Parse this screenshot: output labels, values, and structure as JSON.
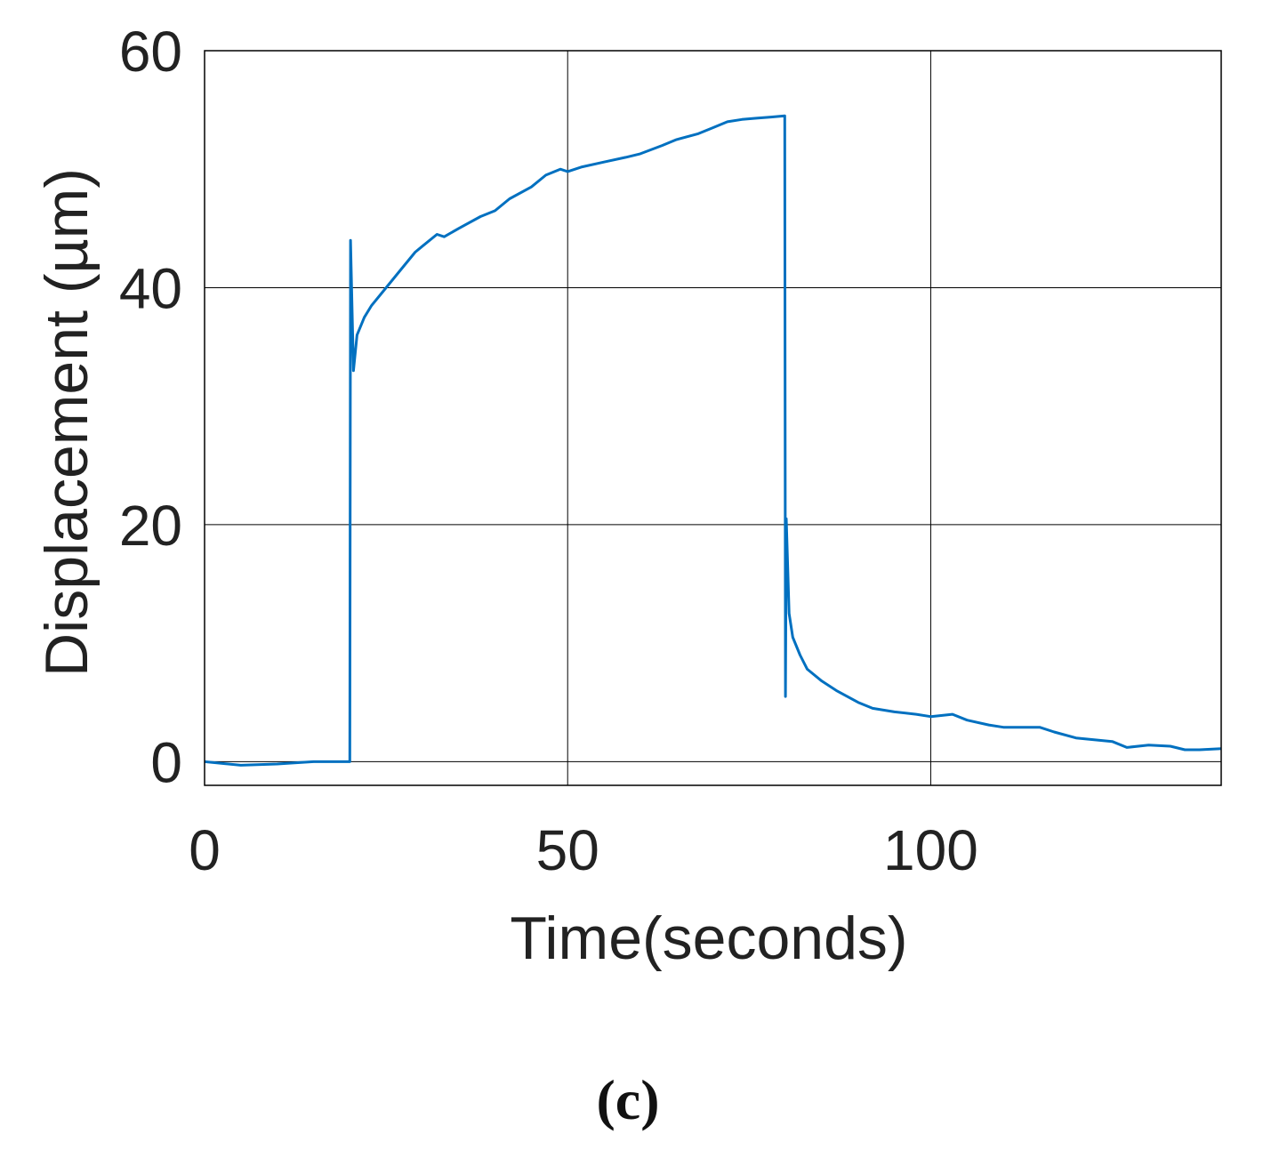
{
  "chart_data": {
    "type": "line",
    "xlabel": "Time(seconds)",
    "ylabel": "Displacement (µm)",
    "xlim": [
      0,
      140
    ],
    "ylim": [
      -2,
      60
    ],
    "xticks": [
      0,
      50,
      100
    ],
    "yticks": [
      0,
      20,
      40,
      60
    ],
    "grid": true,
    "panel_label": "(c)",
    "series": [
      {
        "color": "#0070C0",
        "x": [
          0,
          5,
          10,
          15,
          19.5,
          20,
          20.1,
          20.5,
          21,
          22,
          23,
          25,
          27,
          29,
          30,
          32,
          33,
          35,
          38,
          40,
          42,
          45,
          47,
          49,
          50,
          52,
          55,
          58,
          60,
          63,
          65,
          68,
          70,
          72,
          74,
          76,
          78,
          79.9,
          80,
          80.1,
          80.5,
          81,
          82,
          83,
          85,
          87,
          90,
          92,
          95,
          98,
          100,
          103,
          105,
          108,
          110,
          115,
          117,
          120,
          125,
          127,
          130,
          133,
          135,
          137,
          140
        ],
        "y": [
          0,
          -0.3,
          -0.2,
          0,
          0,
          0,
          44,
          33,
          36,
          37.5,
          38.5,
          40,
          41.5,
          43,
          43.5,
          44.5,
          44.3,
          45,
          46,
          46.5,
          47.5,
          48.5,
          49.5,
          50,
          49.8,
          50.2,
          50.6,
          51,
          51.3,
          52,
          52.5,
          53,
          53.5,
          54,
          54.2,
          54.3,
          54.4,
          54.5,
          5.5,
          20.5,
          12.5,
          10.5,
          9,
          7.8,
          6.8,
          6,
          5,
          4.5,
          4.2,
          4,
          3.8,
          4,
          3.5,
          3.1,
          2.9,
          2.9,
          2.5,
          2,
          1.7,
          1.2,
          1.4,
          1.3,
          1,
          1,
          1.1
        ]
      }
    ]
  }
}
